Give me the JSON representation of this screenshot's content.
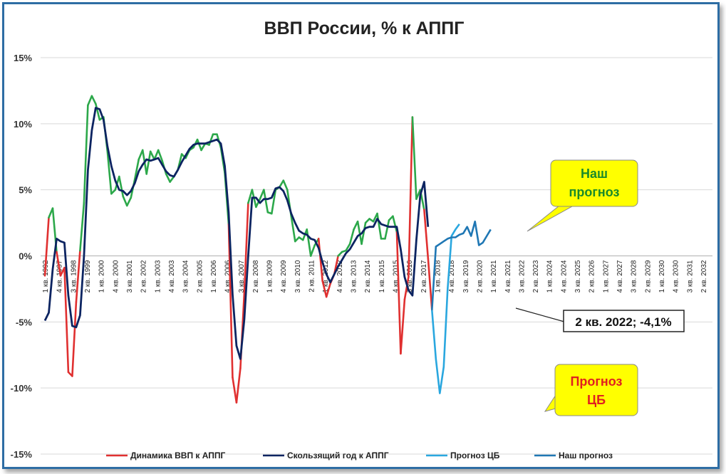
{
  "chart_data": {
    "type": "line",
    "title": "ВВП России, % к АППГ",
    "ylim": [
      -15,
      15
    ],
    "yticks": [
      "15%",
      "10%",
      "5%",
      "0%",
      "-5%",
      "-10%",
      "-15%"
    ],
    "ytick_values": [
      15,
      10,
      5,
      0,
      -5,
      -10,
      -15
    ],
    "grid": true,
    "legend_position": "bottom",
    "x_tick_labels": [
      "1 кв. 1992",
      "4 кв. 1997",
      "3 кв. 1998",
      "2 кв. 1999",
      "1 кв. 2000",
      "4 кв. 2000",
      "3 кв. 2001",
      "2 кв. 2002",
      "1 кв. 2003",
      "4 кв. 2003",
      "3 кв. 2004",
      "2 кв. 2005",
      "1 кв. 2006",
      "4 кв. 2006",
      "3 кв. 2007",
      "2 кв. 2008",
      "1 кв. 2009",
      "4 кв. 2009",
      "3 кв. 2010",
      "2 кв. 2011",
      "1 кв. 2012",
      "4 кв. 2012",
      "3 кв. 2013",
      "2 кв. 2014",
      "1 кв. 2015",
      "4 кв. 2015",
      "3 кв. 2016",
      "2 кв. 2017",
      "1 кв. 2018",
      "4 кв. 2018",
      "3 кв. 2019",
      "2 кв. 2020",
      "1 кв. 2021",
      "4 кв. 2021",
      "3 кв. 2022",
      "2 кв. 2023",
      "1 кв. 2024",
      "4 кв. 2024",
      "3 кв. 2025",
      "2 кв. 2026",
      "1 кв. 2027",
      "4 кв. 2027",
      "3 кв. 2028",
      "2 кв. 2029",
      "1 кв. 2030",
      "4 кв. 2030",
      "3 кв. 2031",
      "2 кв. 2032"
    ],
    "series": [
      {
        "name": "Динамика ВВП к АППГ",
        "color": "#e03030",
        "positive_color": "#2ca84a",
        "values": [
          -1.5,
          2.9,
          3.6,
          0.3,
          -1.5,
          -0.9,
          -8.8,
          -9.1,
          -3.5,
          0.4,
          4.0,
          11.4,
          12.1,
          11.5,
          10.3,
          10.5,
          7.9,
          4.7,
          5.0,
          6.0,
          4.5,
          3.8,
          4.4,
          5.8,
          7.3,
          8.0,
          6.2,
          7.9,
          7.3,
          8.0,
          7.2,
          6.2,
          5.6,
          6.0,
          6.5,
          7.7,
          7.4,
          8.0,
          8.2,
          8.8,
          8.0,
          8.5,
          8.4,
          9.2,
          9.2,
          8.2,
          6.3,
          2.4,
          -9.2,
          -11.1,
          -8.5,
          -2.8,
          4.0,
          5.0,
          3.7,
          4.3,
          5.0,
          3.3,
          3.2,
          5.0,
          5.2,
          5.7,
          5.0,
          3.0,
          1.1,
          1.4,
          1.2,
          2.0,
          0.0,
          0.8,
          1.3,
          -1.9,
          -3.1,
          -2.1,
          -1.4,
          0.0,
          0.3,
          0.4,
          0.9,
          2.0,
          2.6,
          0.9,
          2.5,
          2.8,
          2.6,
          3.2,
          1.3,
          1.3,
          2.7,
          3.0,
          1.8,
          -7.4,
          -3.3,
          -1.6,
          10.5,
          4.3,
          5.0,
          3.5,
          -0.2,
          -4.1
        ]
      },
      {
        "name": "Скользящий год к АППГ",
        "color": "#0c2461",
        "values": [
          -4.9,
          -4.3,
          -1.0,
          1.3,
          1.1,
          1.0,
          -3.0,
          -5.3,
          -5.4,
          -4.5,
          0.0,
          6.5,
          9.5,
          11.2,
          11.1,
          10.3,
          8.3,
          6.8,
          5.7,
          5.0,
          4.9,
          4.6,
          4.9,
          5.5,
          6.4,
          6.9,
          7.3,
          7.2,
          7.3,
          7.4,
          6.9,
          6.4,
          6.1,
          6.0,
          6.5,
          7.1,
          7.6,
          8.1,
          8.4,
          8.5,
          8.5,
          8.5,
          8.6,
          8.7,
          8.8,
          8.5,
          6.8,
          3.3,
          -2.9,
          -6.8,
          -7.8,
          -4.8,
          0.0,
          4.4,
          4.4,
          4.0,
          4.3,
          4.3,
          4.4,
          5.1,
          5.2,
          4.9,
          4.2,
          3.2,
          2.5,
          1.9,
          1.7,
          1.6,
          1.3,
          1.2,
          0.6,
          -0.5,
          -1.4,
          -2.0,
          -1.4,
          -0.8,
          -0.3,
          0.2,
          0.5,
          1.0,
          1.5,
          1.7,
          2.1,
          2.2,
          2.2,
          2.8,
          2.4,
          2.3,
          2.2,
          2.2,
          2.2,
          0.5,
          -1.6,
          -2.6,
          -3.0,
          1.2,
          4.6,
          5.6,
          2.2
        ]
      },
      {
        "name": "Прогноз ЦБ",
        "color": "#2aa7df",
        "start_index": 99,
        "values": [
          -4.1,
          -7.8,
          -10.4,
          -8.4,
          -2.5,
          1.5,
          2.0,
          2.4
        ]
      },
      {
        "name": "Наш прогноз",
        "color": "#1f77b4",
        "start_index": 99,
        "values": [
          -4.1,
          0.7,
          0.9,
          1.1,
          1.3,
          1.4,
          1.4,
          1.6,
          1.7,
          2.2,
          1.5,
          2.6,
          0.8,
          1.0,
          1.5,
          2.0
        ]
      }
    ],
    "annotations": {
      "our_forecast_callout": "Наш прогноз",
      "cb_forecast_callout": "Прогноз ЦБ",
      "point_label": "2 кв. 2022; -4,1%"
    }
  }
}
